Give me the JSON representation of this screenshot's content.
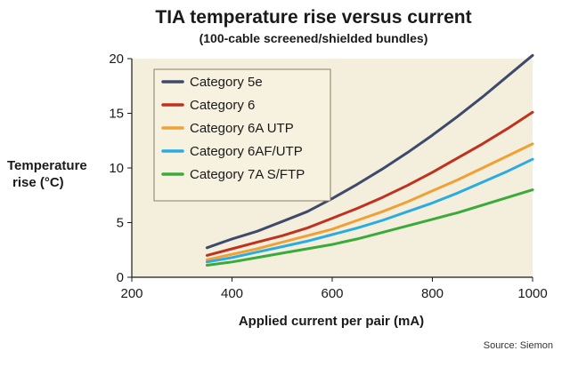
{
  "chart_data": {
    "type": "line",
    "title": "TIA temperature rise versus current",
    "subtitle": "(100-cable screened/shielded bundles)",
    "xlabel": "Applied current per pair (mA)",
    "ylabel_line1": "Temperature",
    "ylabel_line2": "rise (°C)",
    "xlim": [
      200,
      1000
    ],
    "ylim": [
      0,
      20
    ],
    "x_ticks": [
      "200",
      "400",
      "600",
      "800",
      "1000"
    ],
    "y_ticks": [
      "0",
      "5",
      "10",
      "15",
      "20"
    ],
    "grid": false,
    "legend_position": "top-left",
    "source": "Source: Siemon",
    "colors": {
      "plot_bg": "#f4eedd",
      "legend_bg": "#f7f1e0",
      "legend_border": "#8a7e62"
    },
    "series": [
      {
        "name": "Category 5e",
        "color": "#3d4a6b",
        "x": [
          350,
          400,
          450,
          500,
          550,
          600,
          650,
          700,
          750,
          800,
          850,
          900,
          950,
          1000
        ],
        "y": [
          2.7,
          3.5,
          4.2,
          5.1,
          6.0,
          7.2,
          8.5,
          9.9,
          11.4,
          13.0,
          14.7,
          16.5,
          18.4,
          20.3
        ]
      },
      {
        "name": "Category 6",
        "color": "#c0311e",
        "x": [
          350,
          400,
          450,
          500,
          550,
          600,
          650,
          700,
          750,
          800,
          850,
          900,
          950,
          1000
        ],
        "y": [
          2.0,
          2.6,
          3.2,
          3.8,
          4.5,
          5.4,
          6.3,
          7.3,
          8.4,
          9.6,
          10.9,
          12.2,
          13.6,
          15.1
        ]
      },
      {
        "name": "Category 6A UTP",
        "color": "#f0a035",
        "x": [
          350,
          400,
          450,
          500,
          550,
          600,
          650,
          700,
          750,
          800,
          850,
          900,
          950,
          1000
        ],
        "y": [
          1.6,
          2.1,
          2.6,
          3.2,
          3.8,
          4.4,
          5.2,
          6.0,
          6.9,
          7.9,
          8.9,
          10.0,
          11.1,
          12.2
        ]
      },
      {
        "name": "Category 6AF/UTP",
        "color": "#2aace0",
        "x": [
          350,
          400,
          450,
          500,
          550,
          600,
          650,
          700,
          750,
          800,
          850,
          900,
          950,
          1000
        ],
        "y": [
          1.4,
          1.8,
          2.3,
          2.8,
          3.3,
          3.9,
          4.5,
          5.2,
          6.0,
          6.8,
          7.7,
          8.7,
          9.7,
          10.8
        ]
      },
      {
        "name": "Category 7A S/FTP",
        "color": "#3aaa3a",
        "x": [
          350,
          400,
          450,
          500,
          550,
          600,
          650,
          700,
          750,
          800,
          850,
          900,
          950,
          1000
        ],
        "y": [
          1.1,
          1.4,
          1.8,
          2.2,
          2.6,
          3.0,
          3.5,
          4.1,
          4.7,
          5.3,
          5.9,
          6.6,
          7.3,
          8.0
        ]
      }
    ]
  }
}
